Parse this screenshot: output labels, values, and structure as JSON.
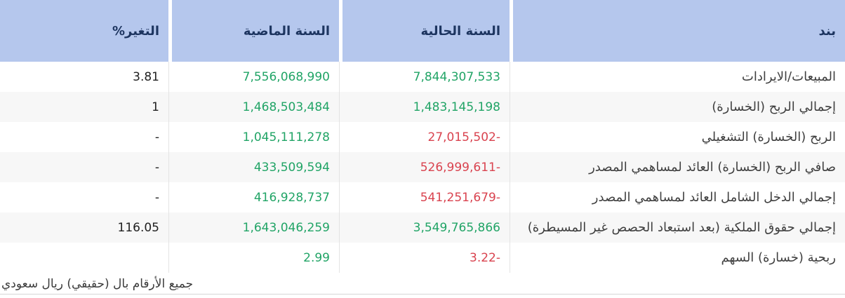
{
  "colors": {
    "header_bg": "#b5c7ed",
    "header_text": "#1d3560",
    "positive_green": "#21a466",
    "negative_red": "#d9434f",
    "neutral_text": "#212121",
    "label_text": "#3f3f3f",
    "alt_row_bg": "#f7f7f7"
  },
  "table": {
    "columns": [
      "بند",
      "السنة الحالية",
      "السنة الماضية",
      "التغير%"
    ],
    "rows": [
      {
        "item": "المبيعات/الايرادات",
        "current": "7,844,307,533",
        "current_color": "#21a466",
        "previous": "7,556,068,990",
        "previous_color": "#21a466",
        "change": "3.81"
      },
      {
        "item": "إجمالي الربح (الخسارة)",
        "current": "1,483,145,198",
        "current_color": "#21a466",
        "previous": "1,468,503,484",
        "previous_color": "#21a466",
        "change": "1"
      },
      {
        "item": "الربح (الخسارة) التشغيلي",
        "current": "27,015,502-",
        "current_color": "#d9434f",
        "previous": "1,045,111,278",
        "previous_color": "#21a466",
        "change": "-"
      },
      {
        "item": "صافي الربح (الخسارة) العائد لمساهمي المصدر",
        "current": "526,999,611-",
        "current_color": "#d9434f",
        "previous": "433,509,594",
        "previous_color": "#21a466",
        "change": "-"
      },
      {
        "item": "إجمالي الدخل الشامل العائد لمساهمي المصدر",
        "current": "541,251,679-",
        "current_color": "#d9434f",
        "previous": "416,928,737",
        "previous_color": "#21a466",
        "change": "-"
      },
      {
        "item": "إجمالي حقوق الملكية (بعد استبعاد الحصص غير المسيطرة)",
        "current": "3,549,765,866",
        "current_color": "#21a466",
        "previous": "1,643,046,259",
        "previous_color": "#21a466",
        "change": "116.05"
      },
      {
        "item": "ربحية (خسارة) السهم",
        "current": "3.22-",
        "current_color": "#d9434f",
        "previous": "2.99",
        "previous_color": "#21a466",
        "change": ""
      }
    ]
  },
  "footer": {
    "note": "جميع الأرقام بال (حقيقي) ريال سعودي"
  }
}
